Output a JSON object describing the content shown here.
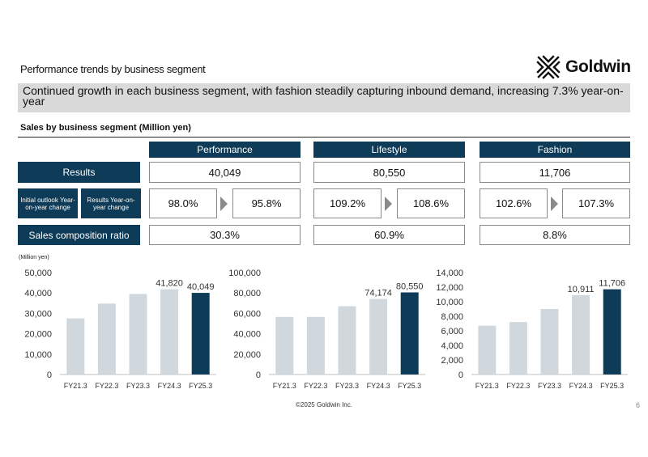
{
  "header": {
    "title": "Performance trends by business segment",
    "logo_text": "Goldwin"
  },
  "banner": "Continued growth in each business segment, with fashion steadily capturing inbound demand, increasing 7.3% year-on-year",
  "section_title": "Sales by business segment (Million yen)",
  "row_labels": {
    "results": "Results",
    "outlook": "Initial outlook Year-on-year change",
    "results_yoy": "Results Year-on-year change",
    "composition": "Sales composition ratio"
  },
  "segments": [
    {
      "name": "Performance",
      "results": "40,049",
      "outlook_yoy": "98.0%",
      "results_yoy": "95.8%",
      "composition": "30.3%"
    },
    {
      "name": "Lifestyle",
      "results": "80,550",
      "outlook_yoy": "109.2%",
      "results_yoy": "108.6%",
      "composition": "60.9%"
    },
    {
      "name": "Fashion",
      "results": "11,706",
      "outlook_yoy": "102.6%",
      "results_yoy": "107.3%",
      "composition": "8.8%"
    }
  ],
  "unit_note": "(Million yen)",
  "colors": {
    "navy": "#0e3b57",
    "bar_light": "#d0d8de",
    "banner_gray": "#d9d9d9"
  },
  "chart_data": [
    {
      "type": "bar",
      "categories": [
        "FY21.3",
        "FY22.3",
        "FY23.3",
        "FY24.3",
        "FY25.3"
      ],
      "values": [
        27500,
        34800,
        39500,
        41820,
        40049
      ],
      "data_labels": [
        "",
        "",
        "",
        "41,820",
        "40,049"
      ],
      "ylim": [
        0,
        50000
      ],
      "yticks": [
        0,
        10000,
        20000,
        30000,
        40000,
        50000
      ],
      "ytick_labels": [
        "0",
        "10,000",
        "20,000",
        "30,000",
        "40,000",
        "50,000"
      ],
      "highlight_index": 4
    },
    {
      "type": "bar",
      "categories": [
        "FY21.3",
        "FY22.3",
        "FY23.3",
        "FY24.3",
        "FY25.3"
      ],
      "values": [
        56500,
        56500,
        67000,
        74174,
        80550
      ],
      "data_labels": [
        "",
        "",
        "",
        "74,174",
        "80,550"
      ],
      "ylim": [
        0,
        100000
      ],
      "yticks": [
        0,
        20000,
        40000,
        60000,
        80000,
        100000
      ],
      "ytick_labels": [
        "0",
        "20,000",
        "40,000",
        "60,000",
        "80,000",
        "100,000"
      ],
      "highlight_index": 4
    },
    {
      "type": "bar",
      "categories": [
        "FY21.3",
        "FY22.3",
        "FY23.3",
        "FY24.3",
        "FY25.3"
      ],
      "values": [
        6700,
        7200,
        9000,
        10911,
        11706
      ],
      "data_labels": [
        "",
        "",
        "",
        "10,911",
        "11,706"
      ],
      "ylim": [
        0,
        14000
      ],
      "yticks": [
        0,
        2000,
        4000,
        6000,
        8000,
        10000,
        12000,
        14000
      ],
      "ytick_labels": [
        "0",
        "2,000",
        "4,000",
        "6,000",
        "8,000",
        "10,000",
        "12,000",
        "14,000"
      ],
      "highlight_index": 4
    }
  ],
  "footer": {
    "copyright": "©2025 Goldwin Inc.",
    "page": "6"
  }
}
